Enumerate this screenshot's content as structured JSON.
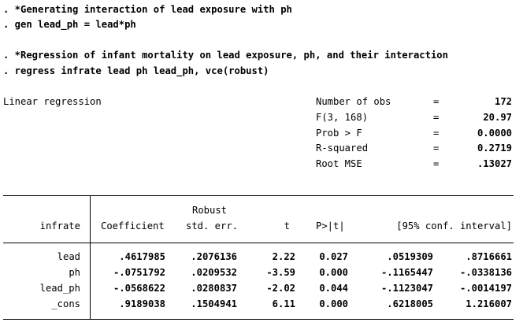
{
  "commands": [
    ". *Generating interaction of lead exposure with ph",
    ". gen lead_ph = lead*ph",
    ". *Regression of infant mortality on lead exposure, ph, and their interaction",
    ". regress infrate lead ph lead_ph, vce(robust)"
  ],
  "model": {
    "title": "Linear regression",
    "stats": [
      {
        "label": "Number of obs",
        "eq": "=",
        "value": "172"
      },
      {
        "label": "F(3, 168)",
        "eq": "=",
        "value": "20.97"
      },
      {
        "label": "Prob > F",
        "eq": "=",
        "value": "0.0000"
      },
      {
        "label": "R-squared",
        "eq": "=",
        "value": "0.2719"
      },
      {
        "label": "Root MSE",
        "eq": "=",
        "value": ".13027"
      }
    ]
  },
  "table": {
    "depvar": "infrate",
    "header_top": "Robust",
    "columns": [
      "Coefficient",
      "std. err.",
      "t",
      "P>|t|",
      "[95% conf. interval]"
    ],
    "rows": [
      {
        "name": "lead",
        "cells": [
          ".4617985",
          ".2076136",
          "2.22",
          "0.027",
          ".0519309",
          ".8716661"
        ]
      },
      {
        "name": "ph",
        "cells": [
          "-.0751792",
          ".0209532",
          "-3.59",
          "0.000",
          "-.1165447",
          "-.0338136"
        ]
      },
      {
        "name": "lead_ph",
        "cells": [
          "-.0568622",
          ".0280837",
          "-2.02",
          "0.044",
          "-.1123047",
          "-.0014197"
        ]
      },
      {
        "name": "_cons",
        "cells": [
          ".9189038",
          ".1504941",
          "6.11",
          "0.000",
          ".6218005",
          "1.216007"
        ]
      }
    ]
  }
}
